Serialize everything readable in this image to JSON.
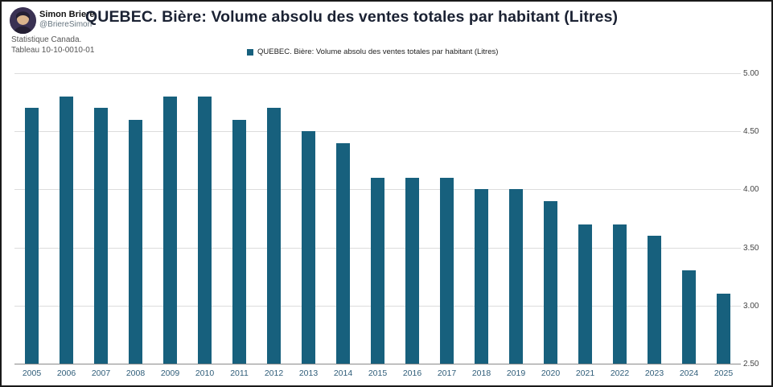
{
  "profile": {
    "name": "Simon Briere",
    "handle": "@BriereSimon",
    "source_line1": "Statistique Canada.",
    "source_line2": "Tableau 10-10-0010-01"
  },
  "title": "QUEBEC. Bière: Volume absolu des ventes totales par habitant (Litres)",
  "legend": {
    "label": "QUEBEC. Bière: Volume absolu des ventes totales par habitant (Litres)",
    "swatch_color": "#17607d"
  },
  "chart_data": {
    "type": "bar",
    "title": "QUEBEC. Bière: Volume absolu des ventes totales par habitant (Litres)",
    "categories": [
      "2005",
      "2006",
      "2007",
      "2008",
      "2009",
      "2010",
      "2011",
      "2012",
      "2013",
      "2014",
      "2015",
      "2016",
      "2017",
      "2018",
      "2019",
      "2020",
      "2021",
      "2022",
      "2023",
      "2024",
      "2025"
    ],
    "values": [
      4.7,
      4.8,
      4.7,
      4.6,
      4.8,
      4.8,
      4.6,
      4.7,
      4.5,
      4.4,
      4.1,
      4.1,
      4.1,
      4.0,
      4.0,
      3.9,
      3.7,
      3.7,
      3.6,
      3.3,
      3.1
    ],
    "xlabel": "",
    "ylabel": "",
    "ylim": [
      2.5,
      5.0
    ],
    "yticks": [
      5.0,
      4.5,
      4.0,
      3.5,
      3.0,
      2.5
    ],
    "ytick_labels": [
      "5.00",
      "4.50",
      "4.00",
      "3.50",
      "3.00",
      "2.50"
    ],
    "bar_color": "#17607d",
    "grid": true,
    "legend_position": "top"
  }
}
